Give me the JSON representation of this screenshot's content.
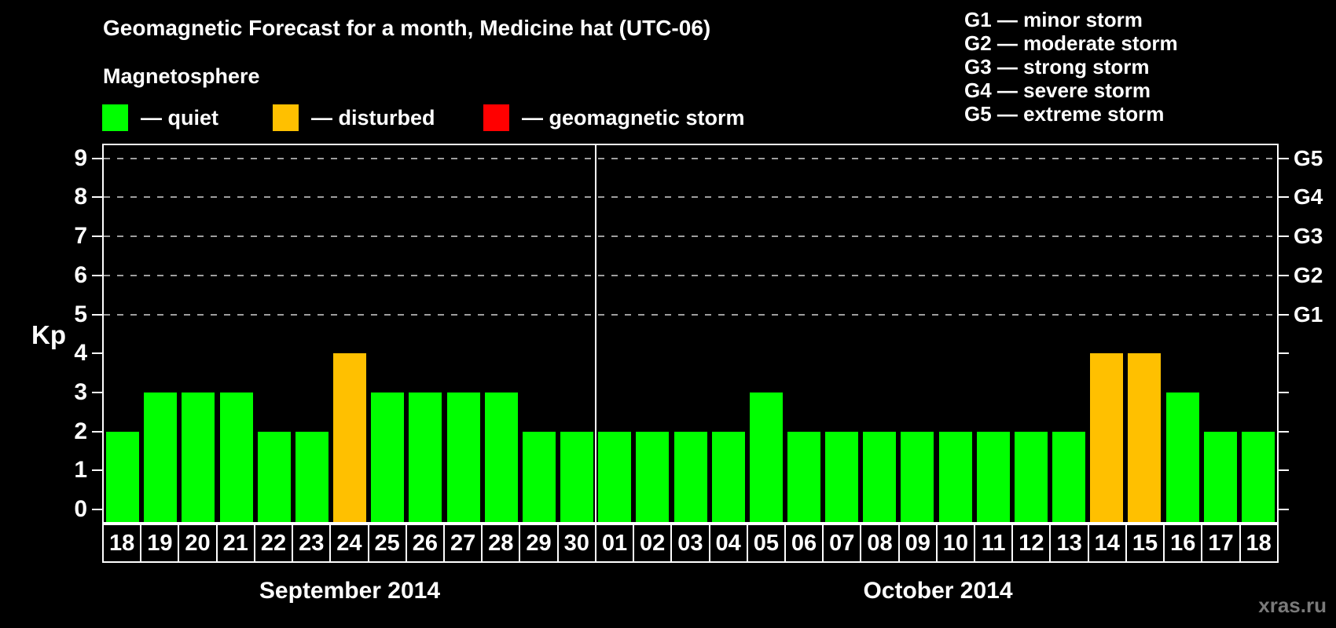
{
  "title": "Geomagnetic Forecast for a month, Medicine hat (UTC-06)",
  "subtitle": "Magnetosphere",
  "legend": {
    "items": [
      {
        "key": "quiet",
        "label": "— quiet",
        "color": "#00ff00"
      },
      {
        "key": "disturbed",
        "label": "— disturbed",
        "color": "#ffc000"
      },
      {
        "key": "storm",
        "label": "— geomagnetic storm",
        "color": "#ff0000"
      }
    ]
  },
  "g_scale_legend": [
    "G1 — minor storm",
    "G2 — moderate storm",
    "G3 — strong storm",
    "G4 — severe storm",
    "G5 — extreme storm"
  ],
  "y_axis": {
    "label": "Kp",
    "ticks": [
      0,
      1,
      2,
      3,
      4,
      5,
      6,
      7,
      8,
      9
    ]
  },
  "right_axis": {
    "labels": [
      {
        "kp": 5,
        "label": "G1"
      },
      {
        "kp": 6,
        "label": "G2"
      },
      {
        "kp": 7,
        "label": "G3"
      },
      {
        "kp": 8,
        "label": "G4"
      },
      {
        "kp": 9,
        "label": "G5"
      }
    ]
  },
  "watermark": "xras.ru",
  "chart_data": {
    "type": "bar",
    "title": "Geomagnetic Forecast for a month, Medicine hat (UTC-06)",
    "xlabel": "",
    "ylabel": "Kp",
    "ylim": [
      0,
      9
    ],
    "grid": "horizontal dashed lines at Kp 5,6,7,8,9 (G1-G5 levels)",
    "gridlines_y": [
      5,
      6,
      7,
      8,
      9
    ],
    "legend_position": "top-left",
    "bar_colors": {
      "quiet": "#00ff00",
      "disturbed": "#ffc000",
      "storm": "#ff0000"
    },
    "months": [
      {
        "label": "September 2014",
        "days": [
          "18",
          "19",
          "20",
          "21",
          "22",
          "23",
          "24",
          "25",
          "26",
          "27",
          "28",
          "29",
          "30"
        ],
        "values": [
          2,
          3,
          3,
          3,
          2,
          2,
          4,
          3,
          3,
          3,
          3,
          2,
          2
        ],
        "status": [
          "quiet",
          "quiet",
          "quiet",
          "quiet",
          "quiet",
          "quiet",
          "disturbed",
          "quiet",
          "quiet",
          "quiet",
          "quiet",
          "quiet",
          "quiet"
        ]
      },
      {
        "label": "October 2014",
        "days": [
          "01",
          "02",
          "03",
          "04",
          "05",
          "06",
          "07",
          "08",
          "09",
          "10",
          "11",
          "12",
          "13",
          "14",
          "15",
          "16",
          "17",
          "18"
        ],
        "values": [
          2,
          2,
          2,
          2,
          3,
          2,
          2,
          2,
          2,
          2,
          2,
          2,
          2,
          4,
          4,
          3,
          2,
          2
        ],
        "status": [
          "quiet",
          "quiet",
          "quiet",
          "quiet",
          "quiet",
          "quiet",
          "quiet",
          "quiet",
          "quiet",
          "quiet",
          "quiet",
          "quiet",
          "quiet",
          "disturbed",
          "disturbed",
          "quiet",
          "quiet",
          "quiet"
        ]
      }
    ]
  }
}
